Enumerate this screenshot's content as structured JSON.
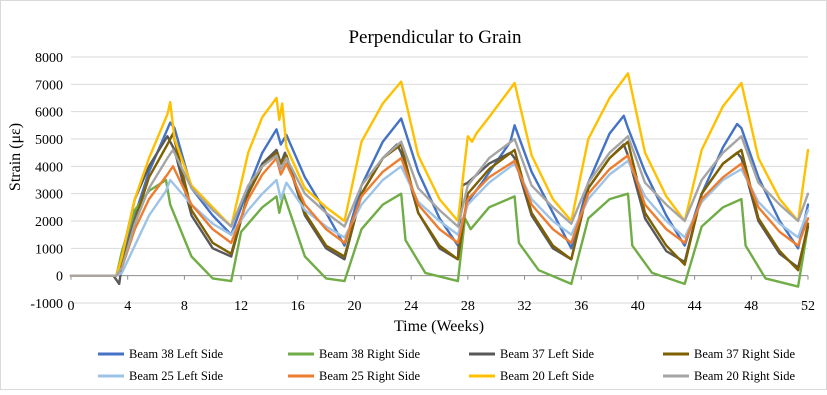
{
  "chart_data": {
    "type": "line",
    "title": "Perpendicular to Grain",
    "xlabel": "Time (Weeks)",
    "ylabel": "Strain (με)",
    "xlim": [
      0,
      52
    ],
    "ylim": [
      -1000,
      8000
    ],
    "xticks": [
      0,
      4,
      8,
      12,
      16,
      20,
      24,
      28,
      32,
      36,
      40,
      44,
      48,
      52
    ],
    "yticks": [
      -1000,
      0,
      1000,
      2000,
      3000,
      4000,
      5000,
      6000,
      7000,
      8000
    ],
    "grid": "horizontal",
    "legend_position": "bottom",
    "series": [
      {
        "name": "Beam 38 Left Side",
        "color": "#4472C4",
        "x": [
          0,
          3.2,
          3.6,
          4.5,
          5.5,
          7.0,
          7.3,
          8.5,
          10,
          11.3,
          12.5,
          13.5,
          14.5,
          14.8,
          15.2,
          16.5,
          18,
          19.3,
          20.5,
          22,
          23.3,
          24.5,
          26,
          27.3,
          28,
          29,
          31,
          31.3,
          32.5,
          34,
          35.3,
          36.5,
          38,
          39,
          39.3,
          40.5,
          42,
          43.3,
          44.5,
          46,
          47,
          47.3,
          48.5,
          50,
          51.3,
          52
        ],
        "y": [
          0,
          0,
          600,
          2200,
          3800,
          5600,
          5400,
          3200,
          2200,
          1500,
          3200,
          4500,
          5350,
          4800,
          5150,
          3600,
          2300,
          1100,
          3300,
          4900,
          5750,
          3800,
          2100,
          1100,
          2700,
          3400,
          4900,
          5500,
          3800,
          2300,
          1000,
          3400,
          5200,
          5850,
          5400,
          3800,
          2200,
          1100,
          3000,
          4700,
          5550,
          5400,
          3600,
          2000,
          1000,
          2600
        ]
      },
      {
        "name": "Beam 38 Right Side",
        "color": "#70AD47",
        "x": [
          0,
          3.2,
          3.6,
          4.5,
          5.5,
          6.7,
          7.0,
          8.5,
          10,
          11.3,
          12.0,
          13.5,
          14.5,
          14.7,
          15.0,
          16.5,
          18,
          19.3,
          20.5,
          22,
          23.3,
          23.6,
          25,
          27.3,
          27.8,
          28.2,
          29.5,
          31.3,
          31.6,
          33,
          35.3,
          36.5,
          38,
          39.3,
          39.6,
          41,
          43.3,
          44.5,
          46,
          47.3,
          47.6,
          49,
          51.3,
          52
        ],
        "y": [
          0,
          0,
          900,
          2400,
          3100,
          3500,
          2600,
          700,
          -100,
          -200,
          1600,
          2500,
          2900,
          2300,
          3000,
          700,
          -100,
          -200,
          1700,
          2600,
          3000,
          1300,
          100,
          -200,
          2100,
          1700,
          2500,
          2900,
          1200,
          200,
          -300,
          2100,
          2800,
          3000,
          1100,
          100,
          -300,
          1800,
          2500,
          2800,
          1100,
          -100,
          -400,
          1800
        ]
      },
      {
        "name": "Beam 37 Left Side",
        "color": "#595959",
        "x": [
          0,
          3.0,
          3.4,
          3.8,
          4.5,
          5.5,
          6.8,
          7.3,
          8.5,
          10,
          11.3,
          12.5,
          13.5,
          14.5,
          14.8,
          15.1,
          16.5,
          18,
          19.3,
          20.5,
          22,
          23.0,
          23.3,
          24.5,
          26,
          27.3,
          27.6,
          28,
          29.5,
          31.0,
          31.3,
          32.5,
          34,
          35.3,
          36.5,
          38,
          39.0,
          39.3,
          40.5,
          42,
          43.3,
          44.5,
          46,
          47.0,
          47.3,
          48.5,
          50,
          51.3,
          52
        ],
        "y": [
          0,
          0,
          -300,
          1200,
          2800,
          4000,
          5100,
          4600,
          2200,
          1000,
          700,
          3000,
          4100,
          4600,
          4100,
          4500,
          2200,
          1000,
          600,
          3000,
          4300,
          4800,
          4500,
          2300,
          1000,
          600,
          3300,
          3400,
          4100,
          4500,
          4300,
          2200,
          1000,
          600,
          3200,
          4300,
          4800,
          4400,
          2100,
          900,
          500,
          3000,
          4100,
          4500,
          4300,
          2000,
          800,
          300,
          1800
        ]
      },
      {
        "name": "Beam 37 Right Side",
        "color": "#7F6000",
        "x": [
          0,
          3.2,
          3.6,
          4.5,
          5.5,
          6.8,
          7.2,
          8.5,
          10,
          11.3,
          12.5,
          13.5,
          14.5,
          14.8,
          15.2,
          16.5,
          18,
          19.3,
          20.5,
          22,
          23.3,
          24.5,
          26,
          27.3,
          28,
          29.5,
          31.3,
          32.5,
          34,
          35.3,
          36.5,
          38,
          39.3,
          40.5,
          42,
          43.3,
          44.5,
          46,
          47.3,
          48.5,
          50,
          51.3,
          52
        ],
        "y": [
          0,
          0,
          400,
          2000,
          3600,
          4800,
          5200,
          2400,
          1200,
          800,
          3000,
          4000,
          4500,
          4100,
          4400,
          2300,
          1100,
          700,
          3000,
          4300,
          4800,
          2300,
          1100,
          600,
          3000,
          3900,
          4600,
          2300,
          1100,
          600,
          3200,
          4300,
          4900,
          2300,
          1100,
          400,
          3000,
          4100,
          4600,
          2100,
          900,
          200,
          1900
        ]
      },
      {
        "name": "Beam 25 Left Side",
        "color": "#9DC3E6",
        "x": [
          0,
          3.2,
          3.6,
          4.5,
          5.5,
          6.7,
          7.0,
          8.5,
          10,
          11.3,
          12.5,
          13.5,
          14.5,
          14.8,
          15.2,
          16.5,
          18,
          19.3,
          20.5,
          22,
          23.3,
          24.5,
          26,
          27.3,
          28,
          29.5,
          31.3,
          32.5,
          34,
          35.3,
          36.5,
          38,
          39.3,
          40.5,
          42,
          43.3,
          44.5,
          46,
          47.3,
          48.5,
          50,
          51.3,
          52
        ],
        "y": [
          0,
          0,
          100,
          1100,
          2200,
          3100,
          3500,
          2600,
          1900,
          1500,
          2400,
          3000,
          3500,
          2800,
          3400,
          2400,
          1800,
          1400,
          2600,
          3500,
          4000,
          2700,
          2000,
          1500,
          2600,
          3400,
          4100,
          2800,
          2000,
          1500,
          2800,
          3700,
          4200,
          2900,
          2000,
          1400,
          2700,
          3500,
          3900,
          2700,
          1900,
          1400,
          2400
        ]
      },
      {
        "name": "Beam 25 Right Side",
        "color": "#ED7D31",
        "x": [
          0,
          3.2,
          3.6,
          4.5,
          5.5,
          6.8,
          7.2,
          8.5,
          10,
          11.3,
          12.5,
          13.5,
          14.5,
          14.8,
          15.2,
          16.5,
          18,
          19.3,
          20.5,
          22,
          23.3,
          24.5,
          26,
          27.3,
          28,
          29.5,
          31.3,
          32.5,
          34,
          35.3,
          36.5,
          38,
          39.3,
          40.5,
          42,
          43.3,
          44.5,
          46,
          47.3,
          48.5,
          50,
          51.3,
          52
        ],
        "y": [
          0,
          0,
          300,
          1700,
          2800,
          3700,
          4000,
          2600,
          1700,
          1200,
          2800,
          3700,
          4300,
          3700,
          4100,
          2600,
          1700,
          1200,
          2900,
          3800,
          4300,
          2600,
          1700,
          1200,
          2800,
          3600,
          4200,
          2600,
          1700,
          1200,
          3000,
          3900,
          4400,
          2600,
          1700,
          1200,
          2800,
          3600,
          4100,
          2500,
          1600,
          1100,
          2100
        ]
      },
      {
        "name": "Beam 20 Left Side",
        "color": "#FFC000",
        "x": [
          0,
          3.2,
          3.6,
          4.5,
          5.5,
          6.8,
          7.0,
          7.3,
          8.5,
          10,
          11.3,
          12.5,
          13.5,
          14.5,
          14.7,
          14.9,
          15.2,
          16.5,
          18,
          19.3,
          20.5,
          22,
          23.3,
          24.5,
          26,
          27.3,
          28,
          28.3,
          28.6,
          29.5,
          31.3,
          32.5,
          34,
          35.3,
          36.5,
          38,
          39.3,
          40.5,
          42,
          43.3,
          44.5,
          46,
          47.3,
          48.5,
          50,
          51.3,
          52
        ],
        "y": [
          0,
          0,
          700,
          2800,
          4300,
          5900,
          6350,
          5000,
          3300,
          2500,
          1800,
          4500,
          5800,
          6500,
          5700,
          6300,
          4700,
          3200,
          2500,
          2000,
          4900,
          6300,
          7100,
          4400,
          2800,
          2000,
          5100,
          4900,
          5200,
          5800,
          7050,
          4400,
          2800,
          2000,
          5000,
          6500,
          7400,
          4500,
          2900,
          2000,
          4600,
          6200,
          7050,
          4300,
          2800,
          2000,
          4600
        ]
      },
      {
        "name": "Beam 20 Right Side",
        "color": "#A5A5A5",
        "x": [
          0,
          3.2,
          3.6,
          4.5,
          5.5,
          6.8,
          7.2,
          8.5,
          10,
          11.3,
          12.5,
          13.5,
          14.5,
          14.8,
          15.2,
          16.5,
          18,
          19.3,
          20.5,
          22,
          23.3,
          24.5,
          26,
          27.3,
          28,
          29.5,
          31.3,
          32.5,
          34,
          35.3,
          36.5,
          38,
          39.3,
          40.5,
          42,
          43.3,
          44.5,
          46,
          47.3,
          48.5,
          50,
          51.3,
          52
        ],
        "y": [
          0,
          0,
          300,
          1900,
          3200,
          4300,
          4600,
          3200,
          2400,
          1800,
          3300,
          4000,
          4400,
          3900,
          4300,
          3000,
          2300,
          1800,
          3300,
          4300,
          4900,
          3200,
          2400,
          1800,
          3300,
          4300,
          5000,
          3300,
          2500,
          1900,
          3400,
          4500,
          5100,
          3400,
          2600,
          2000,
          3500,
          4500,
          5100,
          3400,
          2600,
          2000,
          3000
        ]
      }
    ]
  }
}
